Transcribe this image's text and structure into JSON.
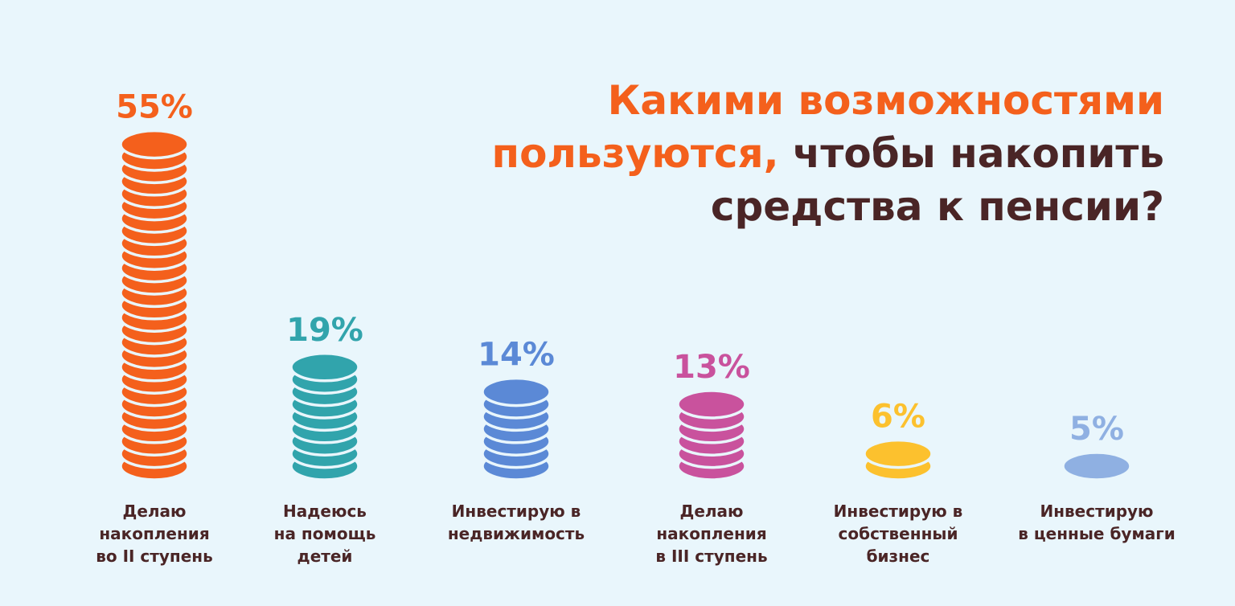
{
  "title": {
    "line1": "Какими возможностями",
    "line2_accent": "пользуются,",
    "line2_rest": " чтобы накопить",
    "line3": "средства к пенсии?"
  },
  "colors": {
    "background": "#e9f6fc",
    "title_accent": "#f4601c",
    "title_main": "#4a2526",
    "label_text": "#4a2526"
  },
  "chart_data": {
    "type": "bar",
    "title": "Какими возможностями пользуются, чтобы накопить средства к пенсии?",
    "unit": "%",
    "series": [
      {
        "values": [
          55,
          19,
          14,
          13,
          6,
          5
        ],
        "data_labels": [
          "55%",
          "19%",
          "14%",
          "13%",
          "6%",
          "5%"
        ],
        "colors": [
          "#f4601c",
          "#31a4ac",
          "#5b89d6",
          "#c9529d",
          "#fcc12e",
          "#8fb0e2"
        ]
      }
    ],
    "categories": [
      [
        "Делаю",
        "накопления",
        "во II ступень"
      ],
      [
        "Надеюсь",
        "на помощь",
        "детей"
      ],
      [
        "Инвестирую в",
        "недвижимость"
      ],
      [
        "Делаю",
        "накопления",
        "в III ступень"
      ],
      [
        "Инвестирую в",
        "собственный",
        "бизнес"
      ],
      [
        "Инвестирую",
        "в ценные бумаги"
      ]
    ],
    "coin_counts": [
      27,
      9,
      7,
      6,
      2,
      1
    ],
    "xlabel": "",
    "ylabel": "",
    "grid": false,
    "legend": "none"
  }
}
